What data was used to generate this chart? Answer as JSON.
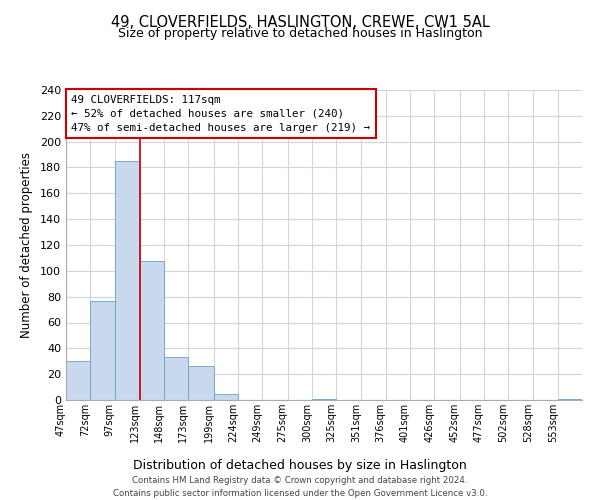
{
  "title": "49, CLOVERFIELDS, HASLINGTON, CREWE, CW1 5AL",
  "subtitle": "Size of property relative to detached houses in Haslington",
  "xlabel": "Distribution of detached houses by size in Haslington",
  "ylabel": "Number of detached properties",
  "bin_labels": [
    "47sqm",
    "72sqm",
    "97sqm",
    "123sqm",
    "148sqm",
    "173sqm",
    "199sqm",
    "224sqm",
    "249sqm",
    "275sqm",
    "300sqm",
    "325sqm",
    "351sqm",
    "376sqm",
    "401sqm",
    "426sqm",
    "452sqm",
    "477sqm",
    "502sqm",
    "528sqm",
    "553sqm"
  ],
  "bar_heights": [
    30,
    77,
    185,
    108,
    33,
    26,
    5,
    0,
    0,
    0,
    1,
    0,
    0,
    0,
    0,
    0,
    0,
    0,
    0,
    0,
    1
  ],
  "bar_color": "#c8d9ee",
  "bar_edge_color": "#6a9fcb",
  "vline_x": 123,
  "vline_color": "#cc0000",
  "ylim": [
    0,
    240
  ],
  "yticks": [
    0,
    20,
    40,
    60,
    80,
    100,
    120,
    140,
    160,
    180,
    200,
    220,
    240
  ],
  "annotation_title": "49 CLOVERFIELDS: 117sqm",
  "annotation_line1": "← 52% of detached houses are smaller (240)",
  "annotation_line2": "47% of semi-detached houses are larger (219) →",
  "annotation_box_color": "#ffffff",
  "annotation_box_edge": "#cc0000",
  "footer_line1": "Contains HM Land Registry data © Crown copyright and database right 2024.",
  "footer_line2": "Contains public sector information licensed under the Open Government Licence v3.0.",
  "background_color": "#ffffff",
  "grid_color": "#ccd5e0",
  "bin_edges": [
    47,
    72,
    97,
    123,
    148,
    173,
    199,
    224,
    249,
    275,
    300,
    325,
    351,
    376,
    401,
    426,
    452,
    477,
    502,
    528,
    553,
    578
  ]
}
